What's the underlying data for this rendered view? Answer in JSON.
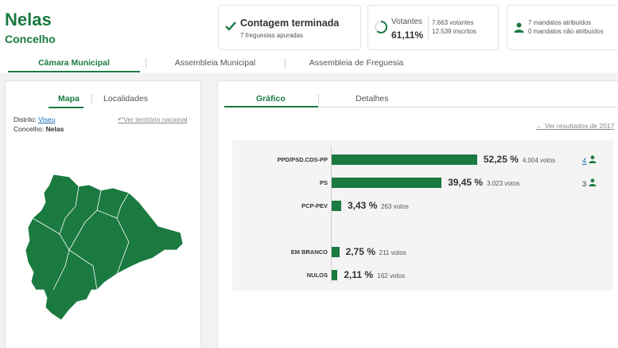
{
  "header": {
    "title": "Nelas",
    "subtitle": "Concelho"
  },
  "status_card": {
    "title": "Contagem terminada",
    "subtitle": "7 freguesias apuradas"
  },
  "turnout_card": {
    "label": "Votantes",
    "percent": "61,11%",
    "turnout_fraction": 0.6111,
    "voters": "7.663 votantes",
    "registered": "12.539 inscritos"
  },
  "mandates_card": {
    "assigned": "7 mandatos atribuídos",
    "unassigned": "0 mandatos não atribuídos"
  },
  "tabs": [
    {
      "label": "Câmara Municipal",
      "active": true
    },
    {
      "label": "Assembleia Municipal",
      "active": false
    },
    {
      "label": "Assembleia de Freguesia",
      "active": false
    }
  ],
  "left_panel": {
    "tabs": [
      {
        "label": "Mapa",
        "active": true
      },
      {
        "label": "Localidades",
        "active": false
      }
    ],
    "district_label": "Distrito:",
    "district_value": "Viseu",
    "county_label": "Concelho:",
    "county_value": "Nelas",
    "national_link": "Ver território nacional"
  },
  "right_panel": {
    "tabs": [
      {
        "label": "Gráfico",
        "active": true
      },
      {
        "label": "Detalhes",
        "active": false
      }
    ],
    "prev_results_link": "Ver resultados de 2017"
  },
  "chart_data": {
    "type": "bar",
    "orientation": "horizontal",
    "categories": [
      "PPD/PSD.CDS-PP",
      "PS",
      "PCP-PEV",
      "EM BRANCO",
      "NULOS"
    ],
    "values": [
      52.25,
      39.45,
      3.43,
      2.75,
      2.11
    ],
    "value_labels": [
      "52,25 %",
      "39,45 %",
      "3,43 %",
      "2,75 %",
      "2,11 %"
    ],
    "votes": [
      "4.004 votos",
      "3.023 votos",
      "263 votos",
      "211 votos",
      "162 votos"
    ],
    "mandates": [
      "4",
      "3",
      "",
      "",
      ""
    ],
    "bar_color": "#1a7a40"
  },
  "colors": {
    "accent": "#1a7a40",
    "link": "#1a6fb5"
  }
}
